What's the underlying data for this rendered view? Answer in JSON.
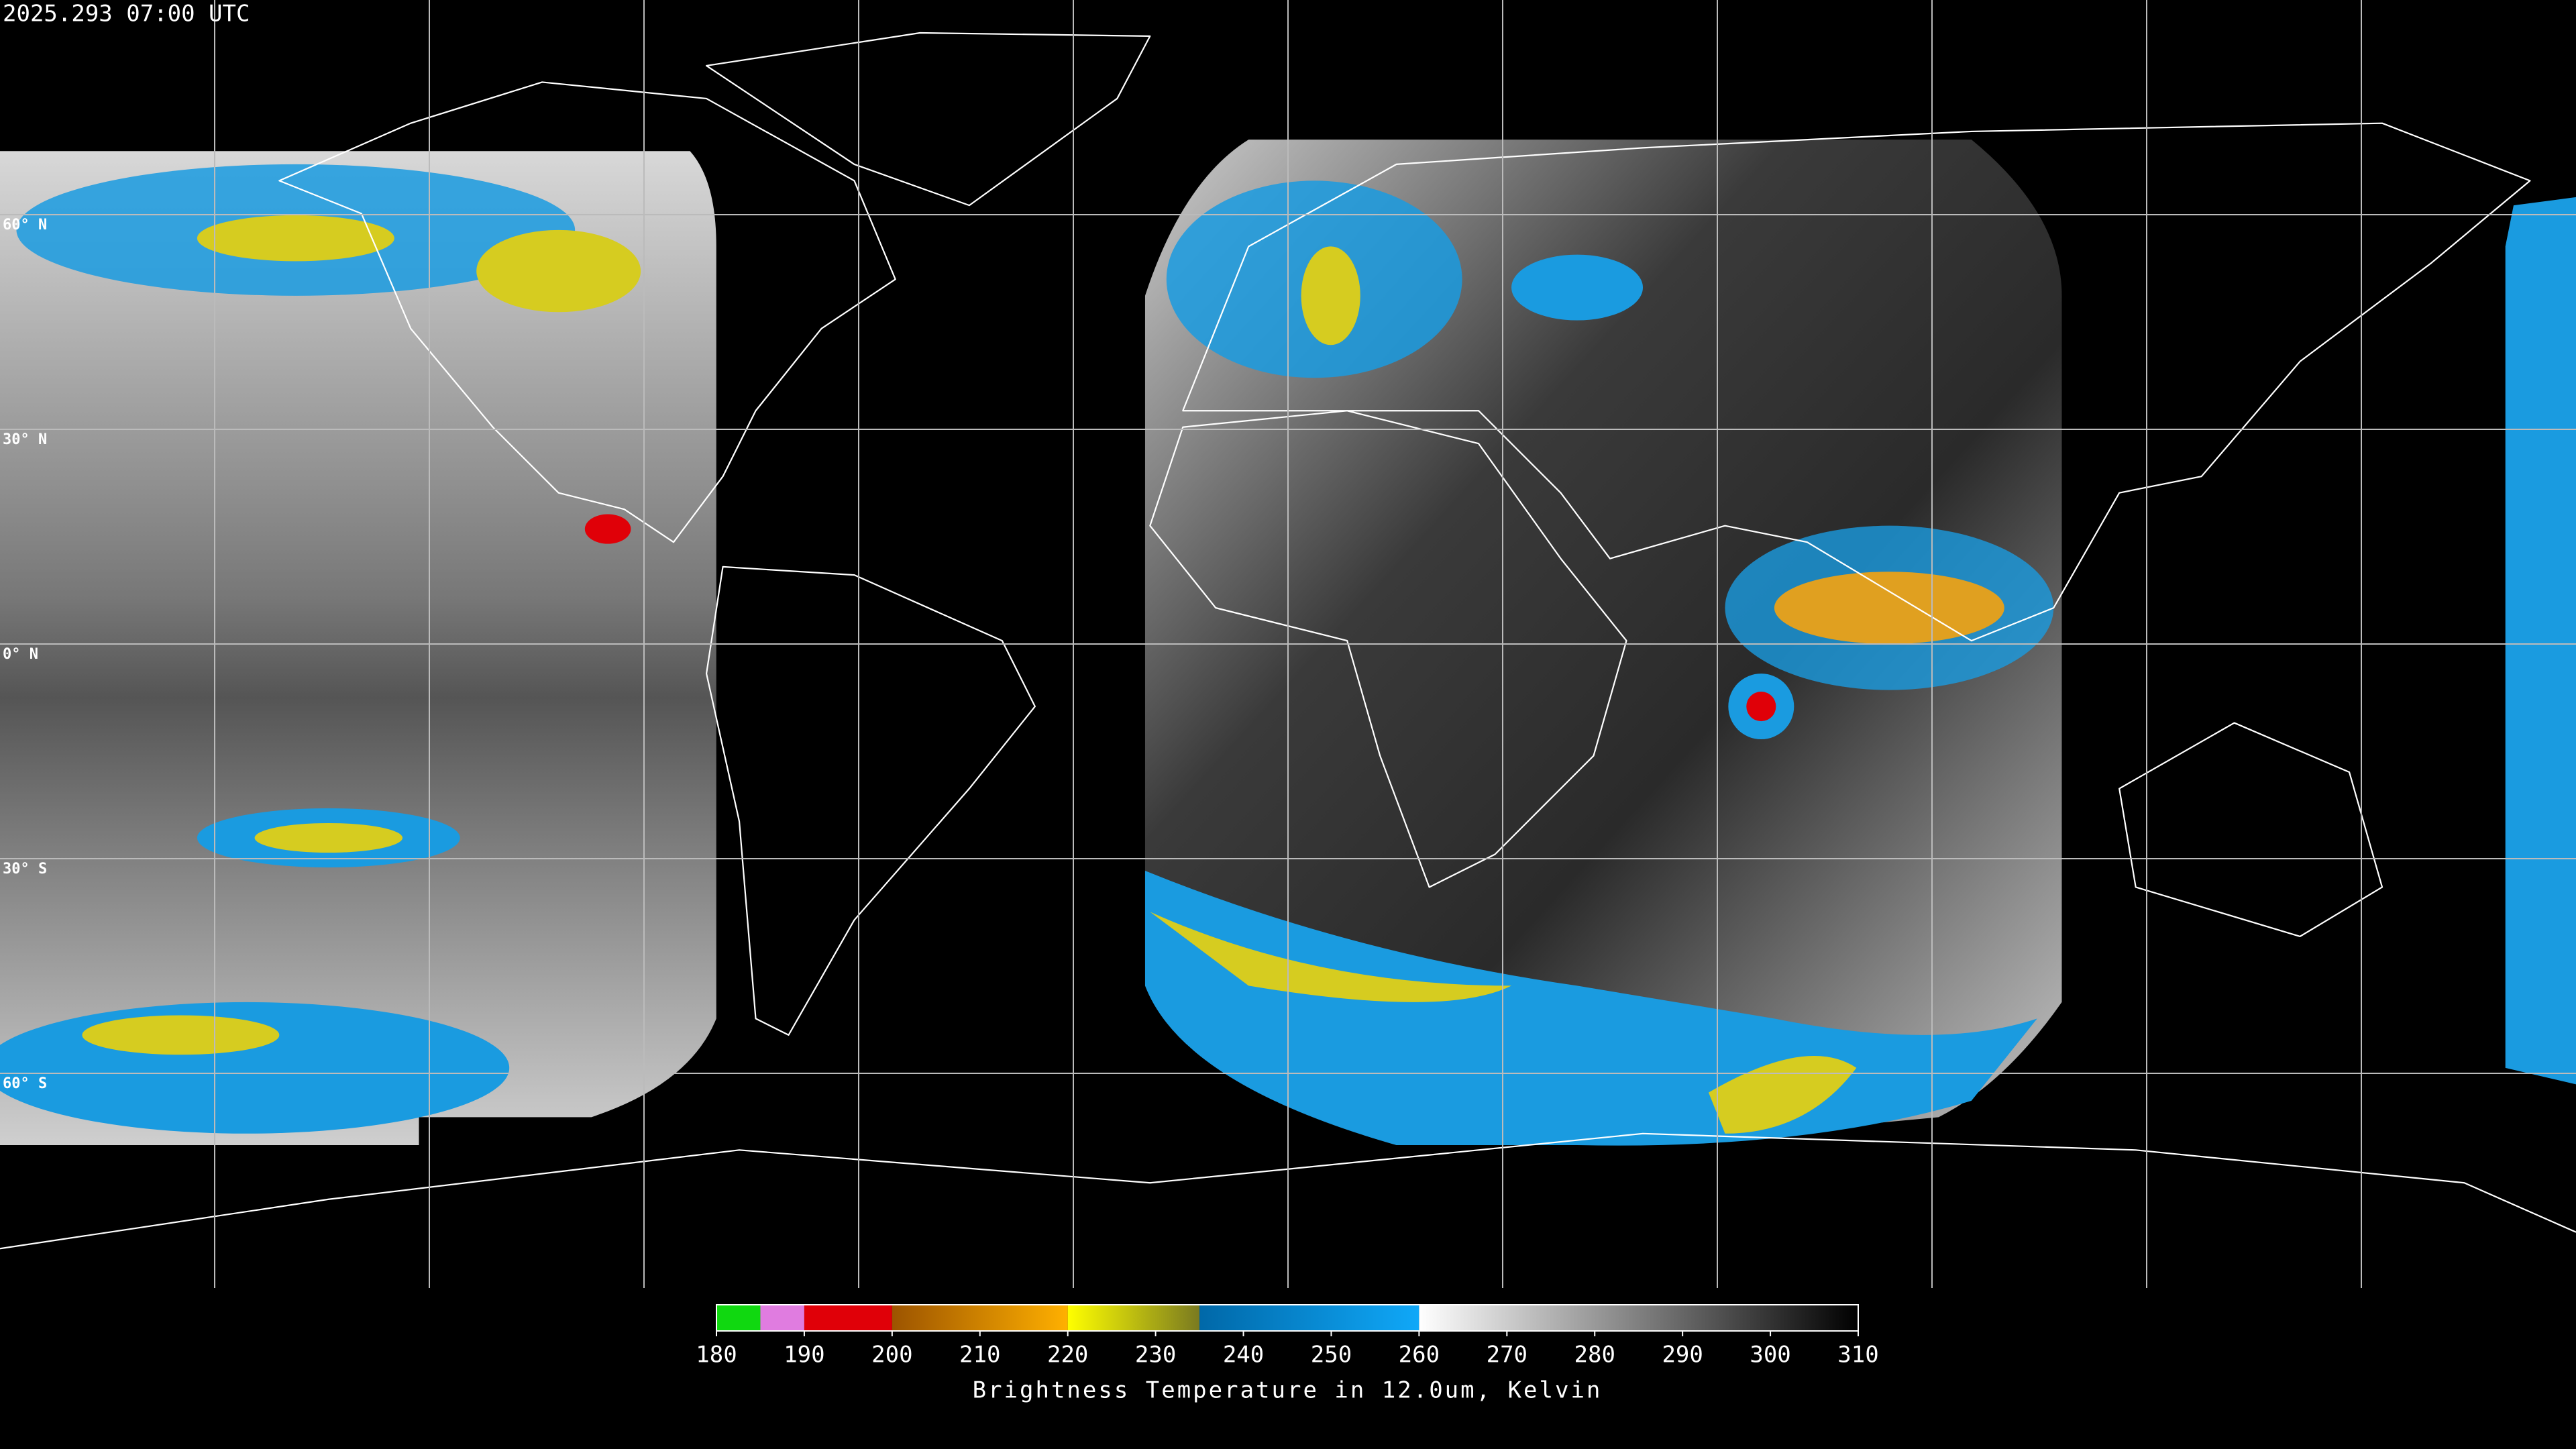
{
  "header": {
    "timestamp": "2025.293 07:00 UTC"
  },
  "map": {
    "lat_lines": [
      {
        "value": 60,
        "label": "60° N"
      },
      {
        "value": 30,
        "label": "30° N"
      },
      {
        "value": 0,
        "label": "0° N"
      },
      {
        "value": -30,
        "label": "30° S"
      },
      {
        "value": -60,
        "label": "60° S"
      }
    ]
  },
  "colorbar": {
    "lim": [
      180,
      310
    ],
    "ticks": [
      180,
      190,
      200,
      210,
      220,
      230,
      240,
      250,
      260,
      270,
      280,
      290,
      300,
      310
    ],
    "segments": [
      {
        "from": 180,
        "to": 185,
        "colors": [
          "#10d810",
          "#10d810"
        ]
      },
      {
        "from": 185,
        "to": 190,
        "colors": [
          "#e07ce0",
          "#e07ce0"
        ]
      },
      {
        "from": 190,
        "to": 200,
        "colors": [
          "#e00008",
          "#e00008"
        ]
      },
      {
        "from": 200,
        "to": 220,
        "colors": [
          "#9c5400",
          "#ffb000"
        ]
      },
      {
        "from": 220,
        "to": 235,
        "colors": [
          "#ffff00",
          "#7a7a20"
        ]
      },
      {
        "from": 235,
        "to": 260,
        "colors": [
          "#0068a8",
          "#10a8f8"
        ]
      },
      {
        "from": 260,
        "to": 310,
        "colors": [
          "#ffffff",
          "#000000"
        ]
      }
    ],
    "label": "Brightness Temperature in 12.0um, Kelvin"
  }
}
